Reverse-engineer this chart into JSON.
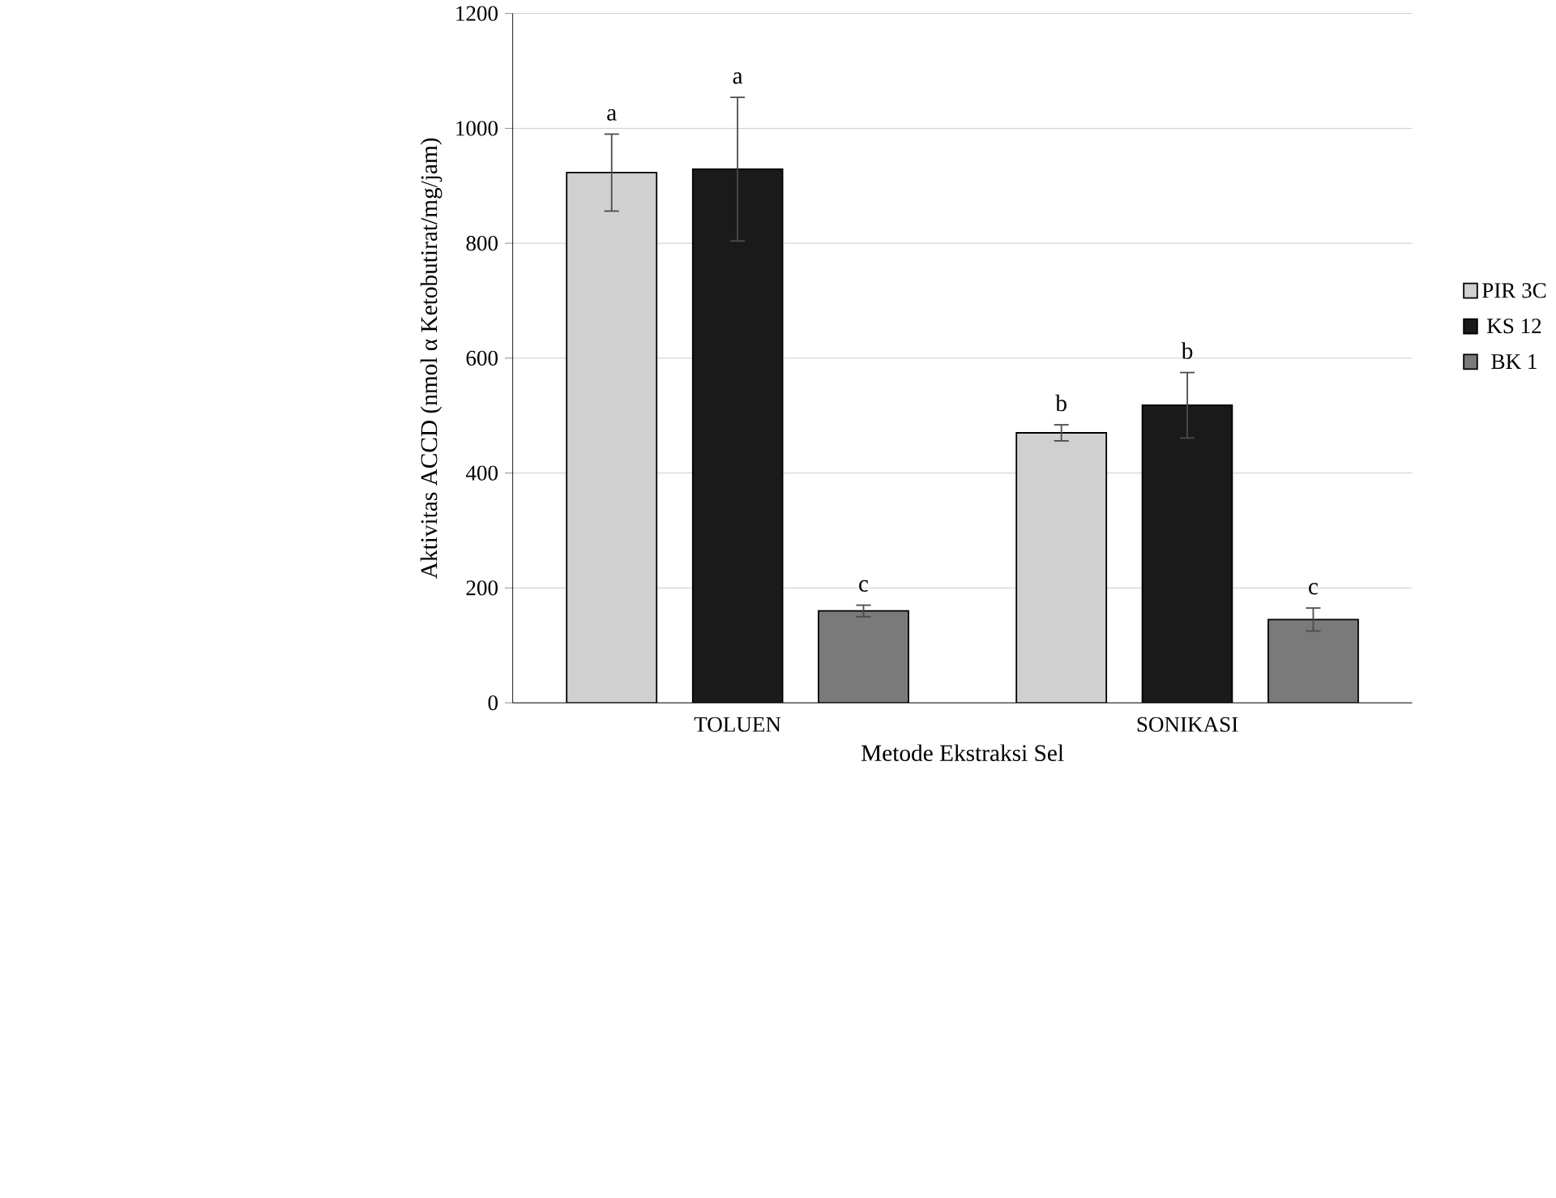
{
  "chart_data": {
    "type": "bar",
    "xlabel": "Metode Ekstraksi Sel",
    "ylabel": "Aktivitas ACCD (nmol α Ketobutirat/mg/jam)",
    "categories": [
      "TOLUEN",
      "SONIKASI"
    ],
    "series": [
      {
        "name": "PIR 3C",
        "color": "#d0d0d0",
        "values": [
          923,
          470
        ],
        "errors": [
          67,
          14
        ]
      },
      {
        "name": "KS 12",
        "color": "#1a1a1a",
        "values": [
          929,
          518
        ],
        "errors": [
          125,
          57
        ]
      },
      {
        "name": "BK 1",
        "color": "#7a7a7a",
        "values": [
          160,
          145
        ],
        "errors": [
          10,
          20
        ]
      }
    ],
    "annotations": [
      "a",
      "a",
      "c",
      "b",
      "b",
      "c"
    ],
    "ylim": [
      0,
      1200
    ],
    "yticks": [
      0,
      200,
      400,
      600,
      800,
      1000,
      1200
    ],
    "grid": "y",
    "legend": "right"
  }
}
